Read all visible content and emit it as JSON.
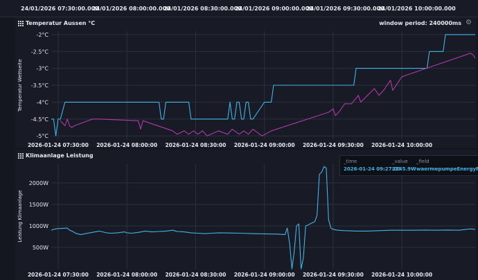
{
  "top_axis": [
    "24/01/2026 07:30:00.000",
    "24/01/2026 08:00:00.000",
    "24/01/2026 08:30:00.000",
    "24/01/2026 09:00:00.000",
    "24/01/2026 09:30:00.000",
    "24/01/2026 10:00:00.000"
  ],
  "panel1": {
    "title": "Temperatur Aussen °C",
    "window_label": "window period: 240000ms",
    "ylabel": "Temperatur Wettseite",
    "yticks": [
      "-2°C",
      "-2.5°C",
      "-3°C",
      "-3.5°C",
      "-4°C",
      "-4.5°C",
      "-5°C"
    ],
    "xticks": [
      "2026-01-24 07:30:00",
      "2026-01-24 08:00:00",
      "2026-01-24 08:30:00",
      "2026-01-24 09:00:00",
      "2026-01-24 09:30:00",
      "2026-01-24 10:00:00"
    ]
  },
  "panel2": {
    "title": "Klimaanlage Leistung",
    "ylabel": "Leistung Klimaanlage",
    "yticks": [
      "2000W",
      "1500W",
      "1000W",
      "500W"
    ],
    "xticks": [
      "2026-01-24 07:30:00",
      "2026-01-24 08:00:00",
      "2026-01-24 08:30:00",
      "2026-01-24 09:00:00",
      "2026-01-24 09:30:00",
      "2026-01-24 10:00:00"
    ]
  },
  "tooltip": {
    "h_time": "_time",
    "h_value": "_value",
    "h_field": "_field",
    "time": "2026-01-24 09:27:00",
    "value": "2345.9W",
    "field": "waermepumpeEnergyPower"
  },
  "colors": {
    "blue": "#3fb6e8",
    "magenta": "#b03aa8",
    "background": "#141620"
  },
  "chart_data": [
    {
      "type": "line",
      "title": "Temperatur Aussen °C",
      "ylabel": "Temperatur Wettseite",
      "ylim": [
        -5.1,
        -1.9
      ],
      "xlim": [
        "07:27",
        "10:32"
      ],
      "series": [
        {
          "color": "#3fb6e8",
          "x": [
            "07:27",
            "07:28",
            "07:29",
            "07:30",
            "07:31",
            "07:33",
            "07:34",
            "07:35",
            "07:36",
            "08:14",
            "08:15",
            "08:16",
            "08:17",
            "08:22",
            "08:23",
            "08:24",
            "08:25",
            "08:27",
            "08:28",
            "08:29",
            "08:44",
            "08:45",
            "08:46",
            "08:47",
            "08:48",
            "08:49",
            "08:50",
            "08:51",
            "08:52",
            "08:53",
            "08:54",
            "08:55",
            "09:00",
            "09:01",
            "09:02",
            "09:03",
            "09:04",
            "09:05",
            "09:06",
            "09:38",
            "09:39",
            "09:40",
            "09:41",
            "09:47",
            "09:48",
            "09:49",
            "10:00",
            "10:01",
            "10:02",
            "10:11",
            "10:12",
            "10:13",
            "10:18",
            "10:19",
            "10:20",
            "10:32"
          ],
          "y": [
            -4.5,
            -4.5,
            -5,
            -4.5,
            -4.5,
            -4,
            -4,
            -4,
            -4,
            -4,
            -4.5,
            -4.5,
            -4,
            -4,
            -4,
            -4,
            -4,
            -4,
            -4.5,
            -4.5,
            -4.5,
            -4,
            -4.5,
            -4.5,
            -4,
            -4,
            -4.5,
            -4.5,
            -4,
            -4,
            -4.5,
            -4.5,
            -4,
            -4,
            -4,
            -4,
            -3.5,
            -3.5,
            -3.5,
            -3.5,
            -3.5,
            -3,
            -3,
            -3,
            -3,
            -3,
            -3,
            -3,
            -3,
            -3,
            -2.5,
            -2.5,
            -2.5,
            -2,
            -2,
            -2
          ]
        },
        {
          "color": "#b03aa8",
          "x": [
            "07:31",
            "07:33",
            "07:34",
            "07:35",
            "07:36",
            "07:37",
            "07:45",
            "07:48",
            "08:05",
            "08:06",
            "08:07",
            "08:20",
            "08:22",
            "08:25",
            "08:27",
            "08:29",
            "08:31",
            "08:33",
            "08:35",
            "08:40",
            "08:44",
            "08:46",
            "08:49",
            "08:51",
            "08:53",
            "08:55",
            "08:57",
            "08:59",
            "09:03",
            "09:28",
            "09:30",
            "09:31",
            "09:33",
            "09:35",
            "09:38",
            "09:41",
            "09:42",
            "09:45",
            "09:48",
            "09:50",
            "09:52",
            "09:55",
            "09:56",
            "10:00",
            "10:02",
            "10:30",
            "10:31",
            "10:32"
          ],
          "y": [
            -4.55,
            -4.7,
            -4.5,
            -4.7,
            -4.75,
            -4.7,
            -4.5,
            -4.5,
            -4.55,
            -4.8,
            -4.55,
            -4.85,
            -4.95,
            -4.85,
            -4.95,
            -4.85,
            -4.95,
            -4.85,
            -5.0,
            -4.85,
            -4.95,
            -4.8,
            -4.95,
            -4.85,
            -4.95,
            -4.8,
            -4.9,
            -5.0,
            -4.85,
            -4.3,
            -4.2,
            -4.4,
            -4.25,
            -4.05,
            -4.05,
            -3.8,
            -4.0,
            -3.8,
            -3.6,
            -3.8,
            -3.65,
            -3.35,
            -3.65,
            -3.25,
            -3.2,
            -2.55,
            -2.6,
            -2.7
          ]
        }
      ]
    },
    {
      "type": "line",
      "title": "Klimaanlage Leistung",
      "ylabel": "Leistung Klimaanlage",
      "ylim": [
        0,
        2450
      ],
      "xlim": [
        "07:27",
        "10:32"
      ],
      "series": [
        {
          "color": "#3fb6e8",
          "x": [
            "07:27",
            "07:28",
            "07:30",
            "07:31",
            "07:34",
            "07:35",
            "07:36",
            "07:38",
            "07:40",
            "07:42",
            "07:46",
            "07:48",
            "07:51",
            "07:53",
            "07:56",
            "07:59",
            "08:00",
            "08:02",
            "08:05",
            "08:08",
            "08:11",
            "08:14",
            "08:17",
            "08:20",
            "08:22",
            "08:25",
            "08:28",
            "08:31",
            "08:34",
            "08:37",
            "08:40",
            "08:45",
            "08:50",
            "08:55",
            "09:00",
            "09:05",
            "09:09",
            "09:10",
            "09:11",
            "09:12",
            "09:13",
            "09:14",
            "09:15",
            "09:16",
            "09:17",
            "09:18",
            "09:19",
            "09:20",
            "09:22",
            "09:23",
            "09:24",
            "09:25",
            "09:26",
            "09:27",
            "09:28",
            "09:29",
            "09:30",
            "09:32",
            "09:35",
            "09:40",
            "09:45",
            "09:50",
            "09:55",
            "10:00",
            "10:05",
            "10:10",
            "10:15",
            "10:20",
            "10:25",
            "10:28",
            "10:30",
            "10:32"
          ],
          "y": [
            900,
            920,
            940,
            940,
            950,
            900,
            880,
            820,
            800,
            820,
            860,
            880,
            840,
            830,
            840,
            860,
            840,
            830,
            850,
            880,
            860,
            870,
            880,
            900,
            870,
            860,
            840,
            830,
            820,
            830,
            840,
            835,
            830,
            820,
            815,
            810,
            800,
            950,
            600,
            0,
            400,
            1000,
            1050,
            0,
            250,
            1000,
            1020,
            1050,
            1100,
            1250,
            2200,
            2250,
            2380,
            2345,
            1150,
            950,
            920,
            900,
            890,
            880,
            880,
            890,
            900,
            900,
            900,
            905,
            900,
            905,
            900,
            920,
            930,
            920
          ]
        }
      ]
    }
  ]
}
